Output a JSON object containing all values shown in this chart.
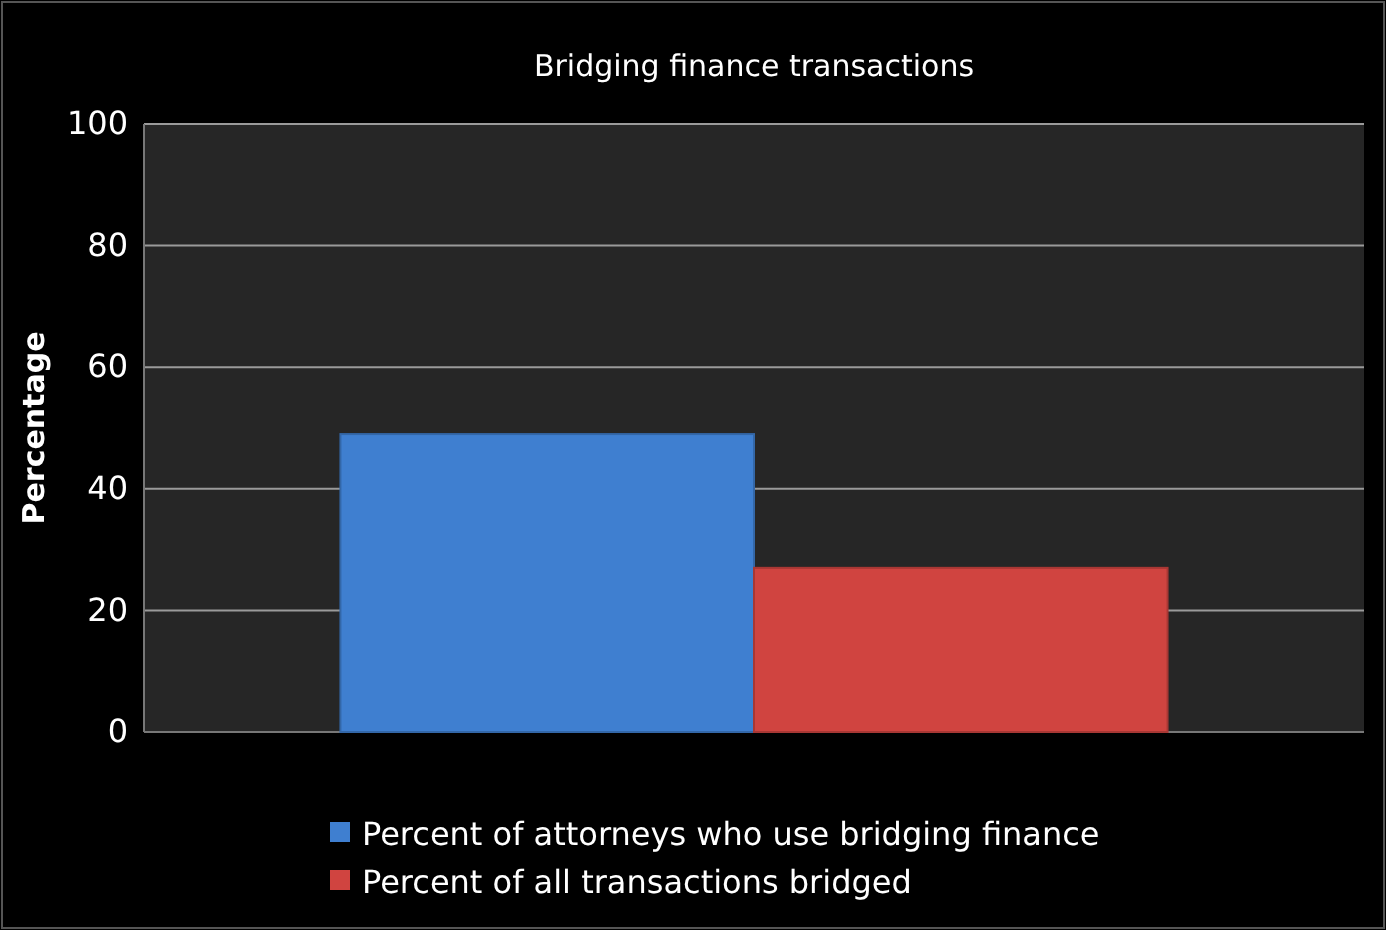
{
  "chart_data": {
    "type": "bar",
    "title": "Bridging finance transactions",
    "ylabel": "Percentage",
    "categories": [
      null
    ],
    "series": [
      {
        "name": "Percent of attorneys who use bridging finance",
        "color": "#3f7fd0",
        "values": [
          49
        ]
      },
      {
        "name": "Percent  of all transactions bridged",
        "color": "#d04440",
        "values": [
          27
        ]
      }
    ],
    "ylim": [
      0,
      100
    ],
    "yticks": [
      0,
      20,
      40,
      60,
      80,
      100
    ],
    "grid": "y",
    "legend": "bottom"
  }
}
